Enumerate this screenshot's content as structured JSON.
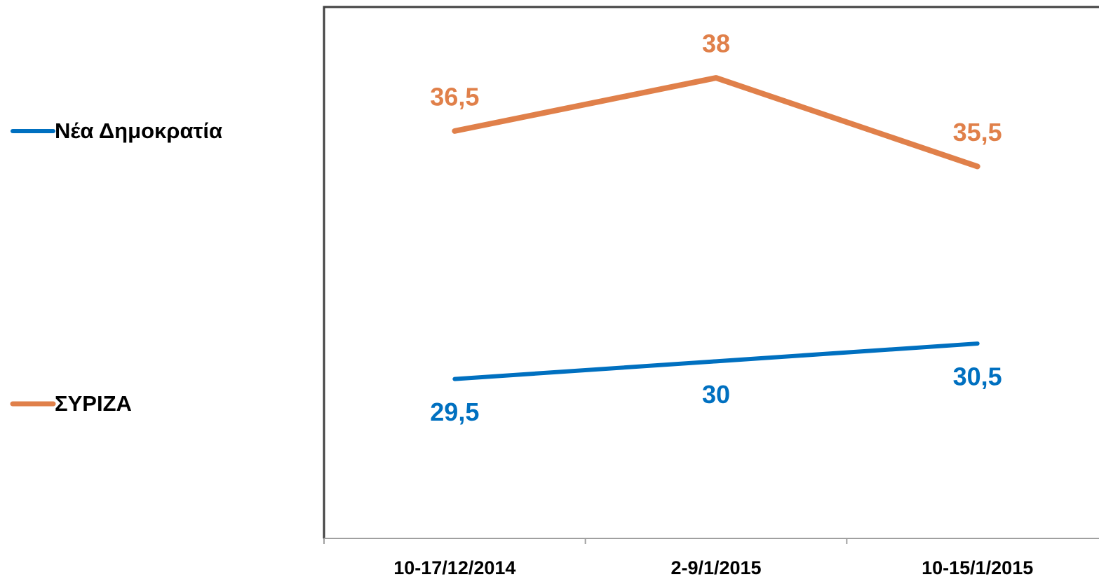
{
  "chart_data": {
    "type": "line",
    "categories": [
      "10-17/12/2014",
      "2-9/1/2015",
      "10-15/1/2015"
    ],
    "series": [
      {
        "name": "Νέα Δημοκρατία",
        "color": "#0070c0",
        "values": [
          29.5,
          30,
          30.5
        ],
        "value_labels": [
          "29,5",
          "30",
          "30,5"
        ],
        "label_position": "below"
      },
      {
        "name": "ΣΥΡΙΖΑ",
        "color": "#e0804a",
        "values": [
          36.5,
          38,
          35.5
        ],
        "value_labels": [
          "36,5",
          "38",
          "35,5"
        ],
        "label_position": "above"
      }
    ],
    "ylim": [
      25,
      40
    ],
    "legend": "left",
    "grid": false
  }
}
